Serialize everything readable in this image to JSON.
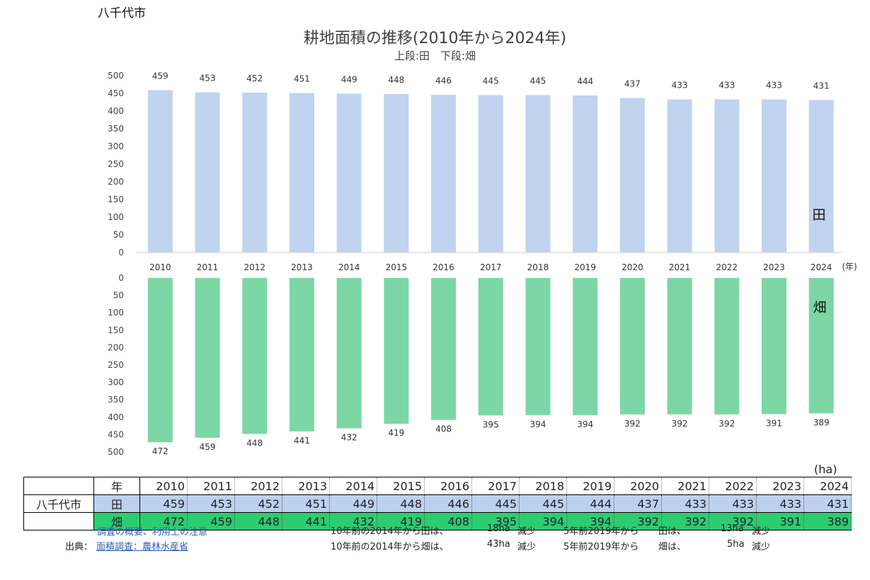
{
  "page": {
    "city": "八千代市",
    "title": "耕地面積の推移(2010年から2024年)",
    "subtitle": "上段:田　下段:畑",
    "unit": "(ha)",
    "year_unit": "(年)"
  },
  "chart_data": {
    "type": "bar",
    "categories": [
      "2010",
      "2011",
      "2012",
      "2013",
      "2014",
      "2015",
      "2016",
      "2017",
      "2018",
      "2019",
      "2020",
      "2021",
      "2022",
      "2023",
      "2024"
    ],
    "series": [
      {
        "name": "田",
        "values": [
          459,
          453,
          452,
          451,
          449,
          448,
          446,
          445,
          445,
          444,
          437,
          433,
          433,
          433,
          431
        ],
        "color": "#c0d3ef",
        "ylim": [
          0,
          500
        ]
      },
      {
        "name": "畑",
        "values": [
          472,
          459,
          448,
          441,
          432,
          419,
          408,
          395,
          394,
          394,
          392,
          392,
          392,
          391,
          389
        ],
        "color": "#7dd6a6",
        "ylim": [
          0,
          500
        ],
        "inverted": true
      }
    ],
    "yticks": [
      "0",
      "50",
      "100",
      "150",
      "200",
      "250",
      "300",
      "350",
      "400",
      "450",
      "500"
    ]
  },
  "table": {
    "header_label": "年",
    "row_city": "八千代市",
    "row_ta_label": "田",
    "row_hata_label": "畑"
  },
  "notes": {
    "survey_link": "調査の概要、利用上の注意",
    "source_label": "出典：",
    "source_link": "面積調査：農林水産省",
    "ta_10y_a": "10年前の2014年から田は、",
    "ta_10y_b": "18ha",
    "ta_10y_c": "減少",
    "ta_5y_a": "5年前2019年から",
    "ta_5y_b": "田は、",
    "ta_5y_c": "13ha",
    "ta_5y_d": "減少",
    "hata_10y_a": "10年前の2014年から畑は、",
    "hata_10y_b": "43ha",
    "hata_10y_c": "減少",
    "hata_5y_a": "5年前2019年から",
    "hata_5y_b": "畑は、",
    "hata_5y_c": "5ha",
    "hata_5y_d": "減少"
  }
}
